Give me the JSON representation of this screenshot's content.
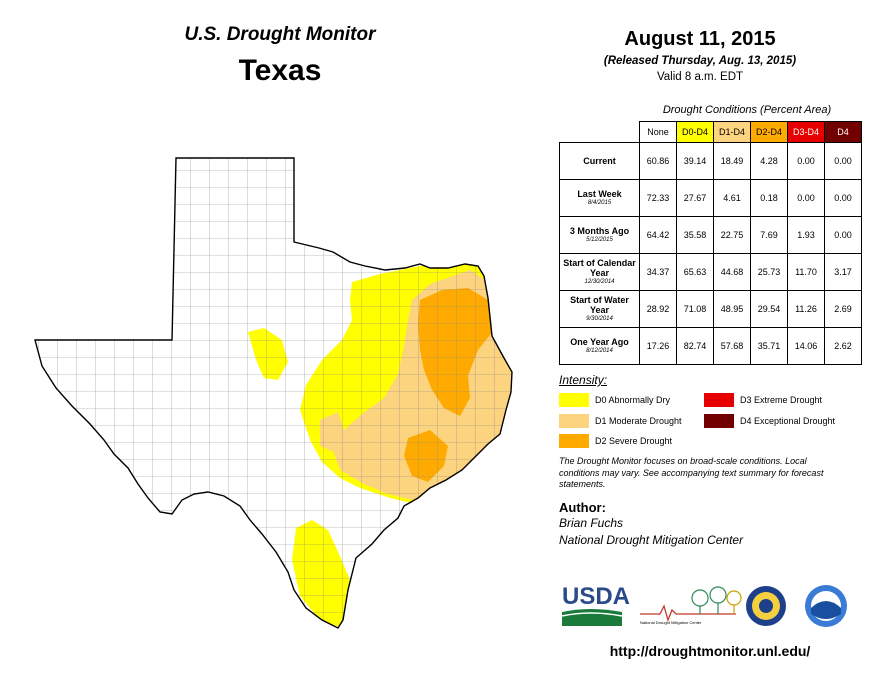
{
  "header": {
    "title": "U.S. Drought Monitor",
    "state": "Texas",
    "date": "August 11, 2015",
    "released": "(Released Thursday, Aug. 13, 2015)",
    "valid": "Valid 8 a.m. EDT"
  },
  "conditions": {
    "title": "Drought Conditions (Percent Area)",
    "columns": [
      {
        "label": "None",
        "bg": "#ffffff",
        "fg": "#000000"
      },
      {
        "label": "D0-D4",
        "bg": "#ffff00",
        "fg": "#000000"
      },
      {
        "label": "D1-D4",
        "bg": "#fcd37f",
        "fg": "#000000"
      },
      {
        "label": "D2-D4",
        "bg": "#ffaa00",
        "fg": "#000000"
      },
      {
        "label": "D3-D4",
        "bg": "#e60000",
        "fg": "#ffffff"
      },
      {
        "label": "D4",
        "bg": "#730000",
        "fg": "#ffffff"
      }
    ],
    "rows": [
      {
        "label": "Current",
        "date": "",
        "values": [
          "60.86",
          "39.14",
          "18.49",
          "4.28",
          "0.00",
          "0.00"
        ]
      },
      {
        "label": "Last Week",
        "date": "8/4/2015",
        "values": [
          "72.33",
          "27.67",
          "4.61",
          "0.18",
          "0.00",
          "0.00"
        ]
      },
      {
        "label": "3 Months Ago",
        "date": "5/12/2015",
        "values": [
          "64.42",
          "35.58",
          "22.75",
          "7.69",
          "1.93",
          "0.00"
        ]
      },
      {
        "label": "Start of Calendar Year",
        "date": "12/30/2014",
        "values": [
          "34.37",
          "65.63",
          "44.68",
          "25.73",
          "11.70",
          "3.17"
        ]
      },
      {
        "label": "Start of Water Year",
        "date": "9/30/2014",
        "values": [
          "28.92",
          "71.08",
          "48.95",
          "29.54",
          "11.26",
          "2.69"
        ]
      },
      {
        "label": "One Year Ago",
        "date": "8/12/2014",
        "values": [
          "17.26",
          "82.74",
          "57.68",
          "35.71",
          "14.06",
          "2.62"
        ]
      }
    ]
  },
  "legend": {
    "title": "Intensity:",
    "items": [
      {
        "label": "D0 Abnormally Dry",
        "color": "#ffff00"
      },
      {
        "label": "D1 Moderate Drought",
        "color": "#fcd37f"
      },
      {
        "label": "D2 Severe Drought",
        "color": "#ffaa00"
      },
      {
        "label": "D3 Extreme Drought",
        "color": "#e60000"
      },
      {
        "label": "D4 Exceptional Drought",
        "color": "#730000"
      }
    ]
  },
  "note": "The Drought Monitor focuses on broad-scale conditions. Local conditions may vary. See accompanying text summary for forecast statements.",
  "author": {
    "heading": "Author:",
    "name": "Brian Fuchs",
    "org": "National Drought Mitigation Center"
  },
  "logos": {
    "usda": "USDA",
    "ndmc": "National Drought Mitigation Center"
  },
  "url": "http://droughtmonitor.unl.edu/"
}
